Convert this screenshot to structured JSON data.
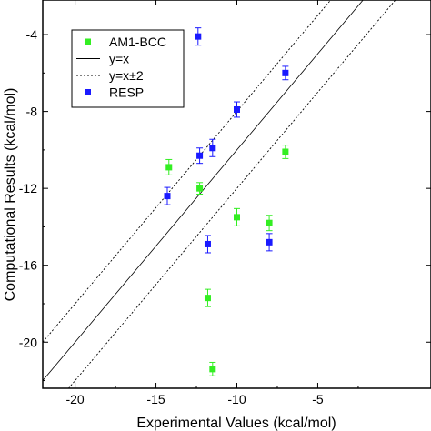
{
  "chart_data": {
    "type": "scatter",
    "title": "",
    "xlabel": "Experimental Values (kcal/mol)",
    "ylabel": "Computational Results (kcal/mol)",
    "xlim": [
      -22,
      2
    ],
    "ylim": [
      -22.4,
      -2.2
    ],
    "xticks": [
      -20,
      -15,
      -10,
      -5
    ],
    "yticks": [
      -4,
      -8,
      -12,
      -16,
      -20
    ],
    "xtick_labels": [
      "-20",
      "-15",
      "-10",
      "-5"
    ],
    "ytick_labels": [
      "-4",
      "-8",
      "-12",
      "-16",
      "-20"
    ],
    "grid": false,
    "legend_position": "top-left",
    "legend": [
      {
        "label": "AM1-BCC",
        "kind": "marker",
        "color": "#33ee22"
      },
      {
        "label": "y=x",
        "kind": "solid-line",
        "color": "#000000"
      },
      {
        "label": "y=x±2",
        "kind": "dotted-line",
        "color": "#000000"
      },
      {
        "label": "RESP",
        "kind": "marker",
        "color": "#1a1aff"
      }
    ],
    "lines": [
      {
        "name": "y=x",
        "offset": 0,
        "style": "solid"
      },
      {
        "name": "y=x±2",
        "offset": 2,
        "style": "dotted"
      },
      {
        "name": "y=x±2",
        "offset": -2,
        "style": "dotted"
      }
    ],
    "series": [
      {
        "name": "AM1-BCC",
        "color": "#33ee22",
        "points": [
          {
            "x": -14.2,
            "y": -10.9,
            "err": 0.4
          },
          {
            "x": -12.3,
            "y": -12.0,
            "err": 0.3
          },
          {
            "x": -7.0,
            "y": -10.1,
            "err": 0.35
          },
          {
            "x": -10.0,
            "y": -13.5,
            "err": 0.45
          },
          {
            "x": -8.0,
            "y": -13.8,
            "err": 0.4
          },
          {
            "x": -11.8,
            "y": -17.7,
            "err": 0.45
          },
          {
            "x": -11.5,
            "y": -21.4,
            "err": 0.35
          }
        ]
      },
      {
        "name": "RESP",
        "color": "#1a1aff",
        "points": [
          {
            "x": -12.4,
            "y": -4.1,
            "err": 0.45
          },
          {
            "x": -7.0,
            "y": -6.0,
            "err": 0.35
          },
          {
            "x": -10.0,
            "y": -7.9,
            "err": 0.4
          },
          {
            "x": -11.5,
            "y": -9.9,
            "err": 0.45
          },
          {
            "x": -12.3,
            "y": -10.3,
            "err": 0.4
          },
          {
            "x": -14.3,
            "y": -12.4,
            "err": 0.45
          },
          {
            "x": -11.8,
            "y": -14.9,
            "err": 0.45
          },
          {
            "x": -8.0,
            "y": -14.8,
            "err": 0.45
          }
        ]
      }
    ]
  }
}
